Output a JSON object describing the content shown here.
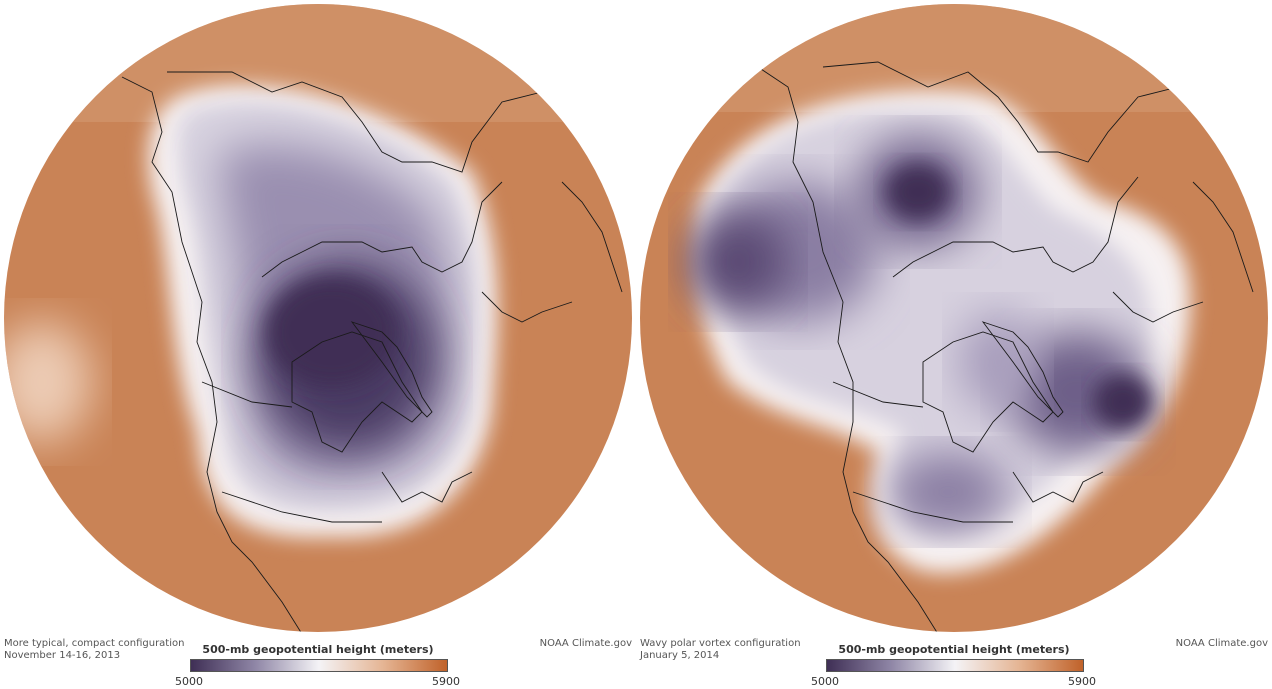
{
  "panels": [
    {
      "caption_line1": "More typical, compact configuration",
      "caption_line2": "November 14-16, 2013",
      "credit": "NOAA Climate.gov",
      "legend_title": "500-mb geopotential height (meters)",
      "scale_min": "5000",
      "scale_max": "5900"
    },
    {
      "caption_line1": "Wavy polar vortex configuration",
      "caption_line2": "January 5, 2014",
      "credit": "NOAA Climate.gov",
      "legend_title": "500-mb geopotential height (meters)",
      "scale_min": "5000",
      "scale_max": "5900"
    }
  ],
  "colors": {
    "low": "#3f2f55",
    "mid": "#f4f3f6",
    "high": "#c0622a",
    "background": "#c87f52",
    "coastline": "#1a1a1a"
  }
}
